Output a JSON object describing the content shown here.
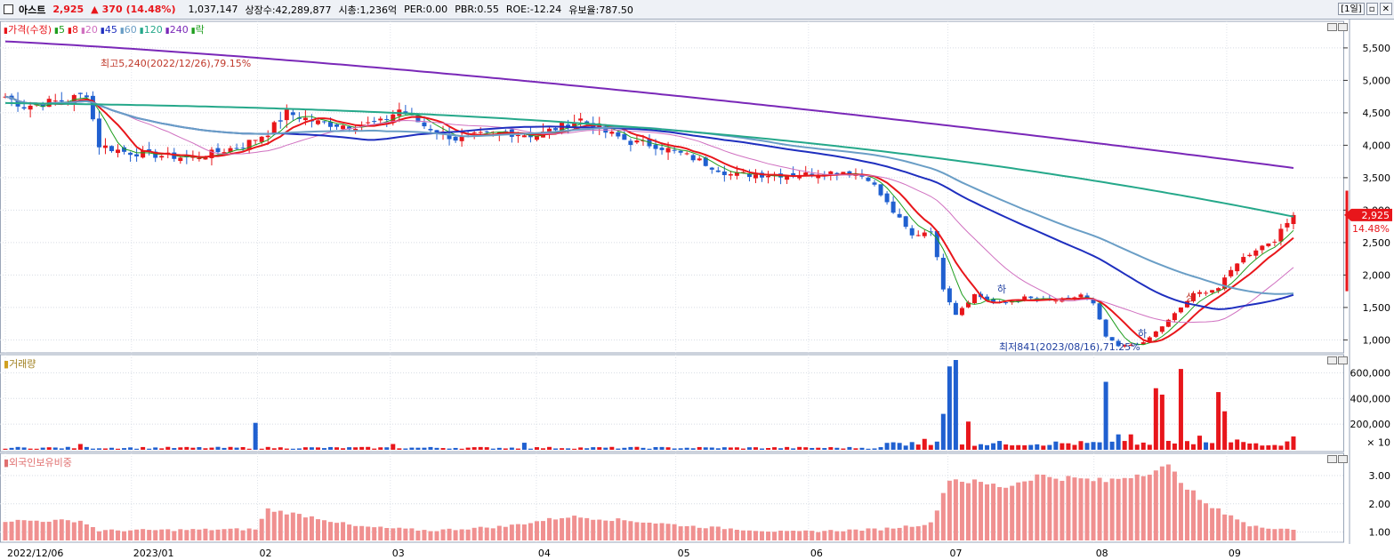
{
  "header": {
    "name": "아스트",
    "price": "2,925",
    "change_arrow": "▲",
    "change": "370",
    "change_pct": "(14.48%)",
    "volume": "1,037,147",
    "listed": "상장수:42,289,877",
    "market_cap": "시총:1,236억",
    "per": "PER:0.00",
    "pbr": "PBR:0.55",
    "roe": "ROE:-12.24",
    "reserve": "유보율:787.50",
    "period": "[1일]",
    "restore_icon": "restore-icon",
    "close_icon": "close-icon"
  },
  "price_panel": {
    "legend": [
      {
        "label": "가격(수정)",
        "color": "#e8161b"
      },
      {
        "label": "5",
        "color": "#1e9e1e"
      },
      {
        "label": "8",
        "color": "#e8161b"
      },
      {
        "label": "20",
        "color": "#d070c0"
      },
      {
        "label": "45",
        "color": "#1f2fbf"
      },
      {
        "label": "60",
        "color": "#6a9ec6"
      },
      {
        "label": "120",
        "color": "#25a88a"
      },
      {
        "label": "240",
        "color": "#7a28b8"
      },
      {
        "label": "락",
        "color": "#1e9e1e"
      }
    ],
    "y_ticks": [
      "5,500",
      "5,000",
      "4,500",
      "4,000",
      "3,500",
      "3,000",
      "2,500",
      "2,000",
      "1,500",
      "1,000"
    ],
    "high_note": "최고5,240(2022/12/26),79.15%",
    "low_note": "최저841(2023/08/16),71.25%",
    "marker_ha_1": "하",
    "marker_ha_2": "하",
    "marker_sang": "상",
    "current_price": "2,925",
    "current_pct": "14.48%"
  },
  "volume_panel": {
    "legend": "거래량",
    "y_ticks": [
      "600,000",
      "400,000",
      "200,000"
    ],
    "unit": "× 10"
  },
  "foreign_panel": {
    "legend": "외국인보유비중",
    "y_ticks": [
      "3.00",
      "2.00",
      "1.00"
    ]
  },
  "x_axis": {
    "labels": [
      "2022/12/06",
      "2023/01",
      "02",
      "03",
      "04",
      "05",
      "06",
      "07",
      "08",
      "09"
    ]
  },
  "colors": {
    "up": "#e8161b",
    "down": "#2060d0",
    "ma5": "#1e9e1e",
    "ma8": "#e8161b",
    "ma20": "#d070c0",
    "ma45": "#1f2fbf",
    "ma60": "#6a9ec6",
    "ma120": "#25a88a",
    "ma240": "#7a28b8",
    "foreign_bar": "#f09090"
  },
  "chart_data": {
    "type": "candlestick",
    "price_range": [
      800,
      5800
    ],
    "key_points": [
      {
        "date": "2022/12/06",
        "close": 4750
      },
      {
        "date": "2022/12/26",
        "high": 5240
      },
      {
        "date": "2023/01/05",
        "close": 3950
      },
      {
        "date": "2023/02/20",
        "close": 4500
      },
      {
        "date": "2023/04/20",
        "close": 4350
      },
      {
        "date": "2023/06/15",
        "close": 3550
      },
      {
        "date": "2023/07/20",
        "close": 1400
      },
      {
        "date": "2023/08/16",
        "low": 841
      },
      {
        "date": "2023/09/15",
        "close": 2925
      }
    ],
    "ma240_end": 3650,
    "ma120_end": 2900,
    "ma60_end": 2000,
    "ma45_end": 1680
  }
}
